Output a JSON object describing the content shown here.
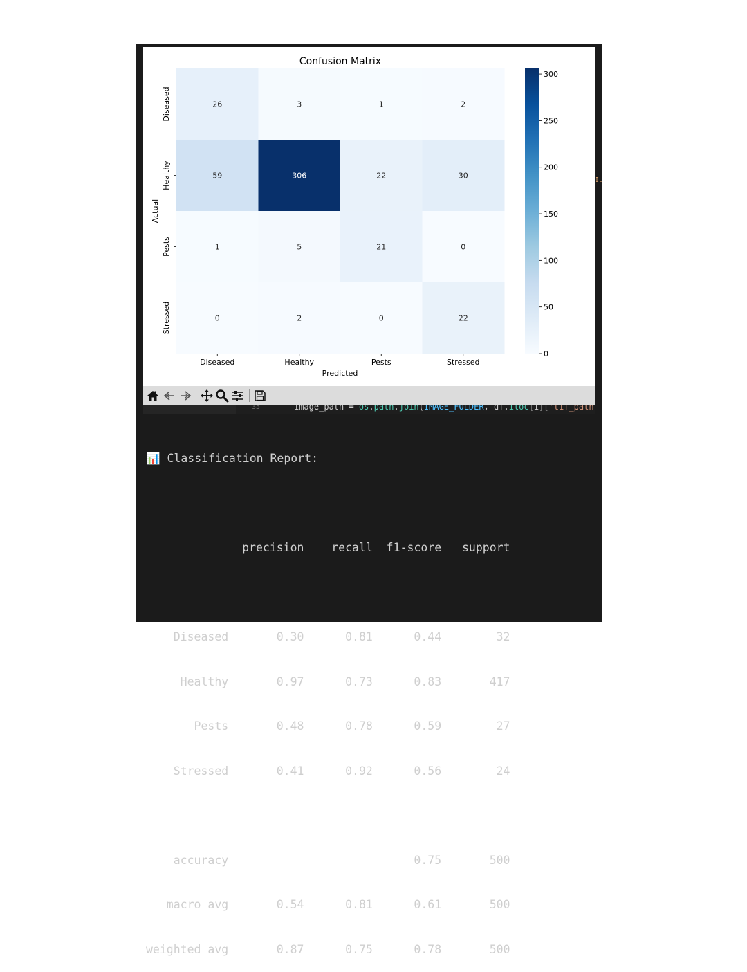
{
  "chart_data": {
    "type": "heatmap",
    "title": "Confusion Matrix",
    "xlabel": "Predicted",
    "ylabel": "Actual",
    "x_categories": [
      "Diseased",
      "Healthy",
      "Pests",
      "Stressed"
    ],
    "y_categories": [
      "Diseased",
      "Healthy",
      "Pests",
      "Stressed"
    ],
    "values": [
      [
        26,
        3,
        1,
        2
      ],
      [
        59,
        306,
        22,
        30
      ],
      [
        1,
        5,
        21,
        0
      ],
      [
        0,
        2,
        0,
        22
      ]
    ],
    "colormap": "Blues",
    "vmin": 0,
    "vmax": 306,
    "colorbar_ticks": [
      0,
      50,
      100,
      150,
      200,
      250,
      300
    ]
  },
  "toolbar": {
    "buttons": [
      {
        "name": "home-button",
        "icon": "home-icon"
      },
      {
        "name": "back-button",
        "icon": "arrow-left-icon"
      },
      {
        "name": "forward-button",
        "icon": "arrow-right-icon"
      },
      {
        "name": "pan-button",
        "icon": "move-icon"
      },
      {
        "name": "zoom-button",
        "icon": "magnifier-icon"
      },
      {
        "name": "configure-button",
        "icon": "sliders-icon"
      },
      {
        "name": "save-button",
        "icon": "floppy-icon"
      }
    ]
  },
  "editor": {
    "line_number": "35"
  },
  "report": {
    "heading_icon": "📊",
    "heading": "Classification Report:",
    "header_line": "              precision    recall  f1-score   support",
    "class_lines": [
      "    Diseased       0.30      0.81      0.44        32",
      "     Healthy       0.97      0.73      0.83       417",
      "       Pests       0.48      0.78      0.59        27",
      "    Stressed       0.41      0.92      0.56        24"
    ],
    "summary_lines": [
      "    accuracy                           0.75       500",
      "   macro avg       0.54      0.81      0.61       500",
      "weighted avg       0.87      0.75      0.78       500"
    ]
  },
  "colors": {
    "terminal_bg": "#1b1b1b",
    "terminal_text": "#cfcfcf",
    "toolbar_bg": "#dcdcdc",
    "heatmap_low": "#f7fbff",
    "heatmap_high": "#08306b"
  }
}
